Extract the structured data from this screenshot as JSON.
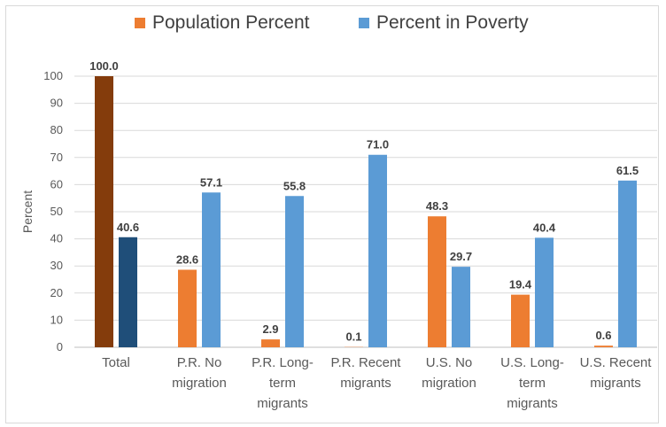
{
  "chart_data": {
    "type": "bar",
    "categories": [
      "Total",
      "P.R. No\nmigration",
      "P.R. Long-\nterm\nmigrants",
      "P.R. Recent\nmigrants",
      "U.S. No\nmigration",
      "U.S. Long-\nterm\nmigrants",
      "U.S. Recent\nmigrants"
    ],
    "series": [
      {
        "name": "Population Percent",
        "color": "#ED7D31",
        "values": [
          100.0,
          28.6,
          2.9,
          0.1,
          48.3,
          19.4,
          0.6
        ],
        "labels": [
          "100.0",
          "28.6",
          "2.9",
          "0.1",
          "48.3",
          "19.4",
          "0.6"
        ]
      },
      {
        "name": "Percent in Poverty",
        "color": "#5B9BD5",
        "values": [
          40.6,
          57.1,
          55.8,
          71.0,
          29.7,
          40.4,
          61.5
        ],
        "labels": [
          "40.6",
          "57.1",
          "55.8",
          "71.0",
          "29.7",
          "40.4",
          "61.5"
        ]
      }
    ],
    "highlight_colors": {
      "Total": [
        "#843C0C",
        "#1F4E79"
      ]
    },
    "ylabel": "Percent",
    "xlabel": "",
    "ylim": [
      0,
      100
    ],
    "yticks": [
      "0",
      "10",
      "20",
      "30",
      "40",
      "50",
      "60",
      "70",
      "80",
      "90",
      "100"
    ],
    "grid": true,
    "legend_position": "top"
  }
}
